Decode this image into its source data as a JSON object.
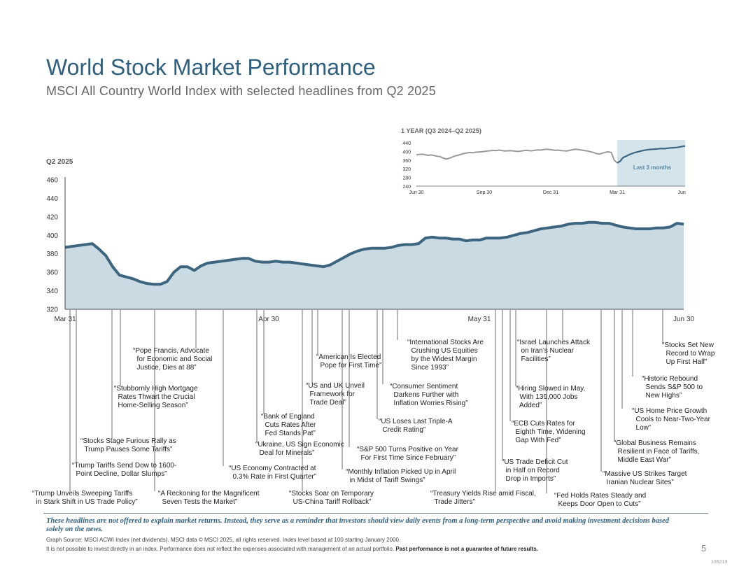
{
  "title": "World Stock Market Performance",
  "subtitle": "MSCI All Country World Index with selected headlines from Q2 2025",
  "colors": {
    "line": "#3d6580",
    "fill": "#c9dae3",
    "title": "#2f5f7f",
    "inset_gray": "#9a9a9a",
    "highlight": "#d4e4eb"
  },
  "chart_data": [
    {
      "type": "area",
      "title": "Q2 2025",
      "ylim": [
        320,
        460
      ],
      "yticks": [
        "320",
        "340",
        "360",
        "380",
        "400",
        "420",
        "440",
        "460"
      ],
      "xticks": [
        "Mar 31",
        "Apr 30",
        "May 31",
        "Jun 30"
      ],
      "x": [
        0,
        1,
        2,
        3,
        4,
        5,
        6,
        7,
        8,
        9,
        10,
        11,
        12,
        13,
        14,
        15,
        16,
        17,
        18,
        19,
        20,
        21,
        22,
        23,
        24,
        25,
        26,
        27,
        28,
        29,
        30,
        31,
        32,
        33,
        34,
        35,
        36,
        37,
        38,
        39,
        40,
        41,
        42,
        43,
        44,
        45,
        46,
        47,
        48,
        49,
        50,
        51,
        52,
        53,
        54,
        55,
        56,
        57,
        58,
        59,
        60,
        61,
        62,
        63,
        64,
        65,
        66,
        67,
        68,
        69,
        70,
        71,
        72,
        73,
        74,
        75,
        76,
        77,
        78,
        79,
        80,
        81,
        82,
        83,
        84,
        85,
        86,
        87,
        88,
        89,
        90,
        91
      ],
      "values": [
        387,
        388,
        389,
        390,
        391,
        385,
        378,
        366,
        357,
        355,
        353,
        350,
        348,
        347,
        347,
        350,
        360,
        366,
        366,
        362,
        367,
        370,
        371,
        372,
        373,
        374,
        375,
        375,
        372,
        371,
        371,
        372,
        371,
        371,
        370,
        369,
        368,
        367,
        366,
        368,
        372,
        376,
        380,
        383,
        385,
        386,
        386,
        386,
        387,
        389,
        390,
        390,
        391,
        397,
        398,
        397,
        397,
        396,
        396,
        394,
        395,
        395,
        397,
        397,
        397,
        398,
        400,
        402,
        403,
        405,
        407,
        408,
        409,
        410,
        412,
        413,
        413,
        414,
        414,
        413,
        413,
        411,
        409,
        408,
        407,
        407,
        407,
        408,
        408,
        409,
        413,
        412
      ]
    },
    {
      "type": "line",
      "title": "1 YEAR (Q3 2024–Q2 2025)",
      "ylim": [
        240,
        440
      ],
      "yticks": [
        "240",
        "280",
        "320",
        "360",
        "400",
        "440"
      ],
      "xticks": [
        "Jun 30",
        "Sep 30",
        "Dec 31",
        "Mar 31",
        "Jun 30"
      ],
      "highlight_label": "Last 3 months",
      "values": [
        385,
        386,
        387,
        385,
        382,
        384,
        381,
        378,
        376,
        370,
        365,
        368,
        373,
        379,
        382,
        386,
        390,
        393,
        395,
        394,
        396,
        397,
        398,
        400,
        402,
        403,
        405,
        404,
        406,
        404,
        402,
        403,
        404,
        402,
        400,
        401,
        403,
        405,
        404,
        403,
        405,
        407,
        406,
        408,
        410,
        409,
        407,
        405,
        406,
        404,
        403,
        402,
        405,
        408,
        410,
        408,
        406,
        404,
        402,
        398,
        395,
        390,
        388,
        392,
        396,
        398,
        395,
        360,
        347,
        355,
        372,
        378,
        385,
        390,
        395,
        398,
        402,
        405,
        407,
        409,
        410,
        411,
        412,
        414,
        413,
        415,
        416,
        417,
        418,
        420,
        423,
        425
      ]
    }
  ],
  "headlines": [
    {
      "text": "“Trump Unveils Sweeping Tariffs\n  in Stark Shift in US Trade Policy”"
    },
    {
      "text": "“Trump Tariffs Send Dow to 1600-\n  Point Decline, Dollar Slumps”"
    },
    {
      "text": "“Stocks Stage Furious Rally as\n  Trump Pauses Some Tariffs”"
    },
    {
      "text": "“Stubbornly High Mortgage\n  Rates Thwart the Crucial\n  Home-Selling Season”"
    },
    {
      "text": "“A Reckoning for the Magnificent\n  Seven Tests the Market”"
    },
    {
      "text": "“Pope Francis, Advocate\n  for Economic and Social\n  Justice, Dies at 88”"
    },
    {
      "text": "“US Economy Contracted at\n  0.3% Rate in First Quarter”"
    },
    {
      "text": "“Ukraine, US Sign Economic\n  Deal for Minerals”"
    },
    {
      "text": "“Bank of England\n  Cuts Rates After\n  Fed Stands Pat”"
    },
    {
      "text": "“Stocks Soar on Temporary\n  US-China Tariff Rollback”"
    },
    {
      "text": "“US and UK Unveil\n  Framework for\n  Trade Deal”"
    },
    {
      "text": "“American Is Elected\n  Pope for First Time”"
    },
    {
      "text": "“Monthly Inflation Picked Up in April\n  in Midst of Tariff Swings”"
    },
    {
      "text": "“S&P 500 Turns Positive on Year\n  For First Time Since February”"
    },
    {
      "text": "“US Loses Last Triple-A\n  Credit Rating”"
    },
    {
      "text": "“Consumer Sentiment\n  Darkens Further with\n  Inflation Worries Rising”"
    },
    {
      "text": "“International Stocks Are\n  Crushing US Equities\n  by the Widest Margin\n  Since 1993”"
    },
    {
      "text": "“Treasury Yields Rise amid Fiscal,\n  Trade Jitters”"
    },
    {
      "text": "“US Trade Deficit Cut\n  in Half on Record\n  Drop in Imports”"
    },
    {
      "text": "“ECB Cuts Rates for\n  Eighth Time, Widening\n  Gap With Fed”"
    },
    {
      "text": "“Hiring Slowed in May,\n  With 139,000 Jobs\n  Added”"
    },
    {
      "text": "“Israel Launches Attack\n  on Iran’s Nuclear\n  Facilities”"
    },
    {
      "text": "“Fed Holds Rates Steady and\n  Keeps Door Open to Cuts”"
    },
    {
      "text": "“Massive US Strikes Target\n  Iranian Nuclear Sites”"
    },
    {
      "text": "“Global Business Remains\n  Resilient in Face of Tariffs,\n  Middle East War”"
    },
    {
      "text": "“US Home Price Growth\n  Cools to Near-Two-Year\n  Low”"
    },
    {
      "text": "“Historic Rebound\n  Sends S&P 500 to\n  New Highs”"
    },
    {
      "text": "“Stocks Set New\n  Record to Wrap\n  Up First Half”"
    }
  ],
  "footer": {
    "disclaimer": "These headlines are not offered to explain market returns. Instead, they serve as a reminder that investors should view daily events from a long-term perspective and avoid making investment decisions based solely on the news.",
    "source": "Graph Source: MSCI ACWI Index (net dividends). MSCI data © MSCI 2025, all rights reserved. Index level based at 100 starting January 2000.",
    "risk_text": "It is not possible to invest directly in an index. Performance does not reflect the expenses associated with management of an actual portfolio. ",
    "risk_bold": "Past performance is not a guarantee of future results.",
    "page_number": "5",
    "code": "135213"
  }
}
